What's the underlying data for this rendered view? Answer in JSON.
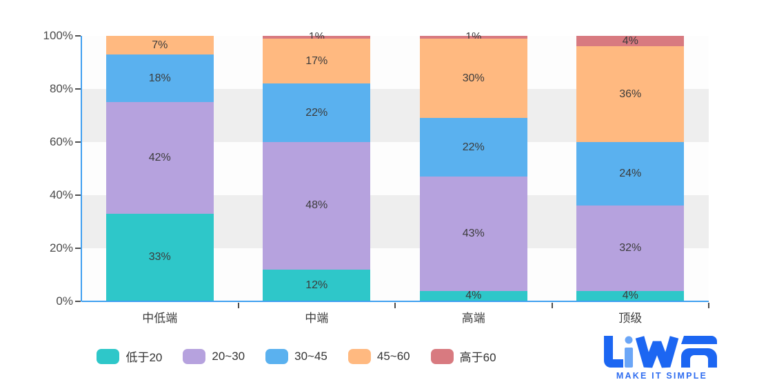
{
  "page": {
    "background": "#ffffff"
  },
  "chart_data": {
    "type": "bar",
    "stacked": true,
    "percent_stack": true,
    "categories": [
      "中低端",
      "中端",
      "高端",
      "顶级"
    ],
    "series": [
      {
        "name": "低于20",
        "color": "#2ec7c9",
        "values": [
          33,
          12,
          4,
          4
        ]
      },
      {
        "name": "20~30",
        "color": "#b6a2de",
        "values": [
          42,
          48,
          43,
          32
        ]
      },
      {
        "name": "30~45",
        "color": "#5ab1ef",
        "values": [
          18,
          22,
          22,
          24
        ]
      },
      {
        "name": "45~60",
        "color": "#ffb980",
        "values": [
          7,
          17,
          30,
          36
        ]
      },
      {
        "name": "高于60",
        "color": "#d87a80",
        "values": [
          0,
          1,
          1,
          4
        ]
      }
    ],
    "data_label_format": "{value}%",
    "y_axis": {
      "tick_labels": [
        "100%",
        "80%",
        "60%",
        "40%",
        "20%",
        "0%"
      ],
      "min": 0,
      "max": 100
    },
    "legend_position": "bottom",
    "grid": {
      "split_area": true,
      "split_area_colors": [
        "rgba(250,250,250,0.45)",
        "rgba(200,200,200,0.3)"
      ]
    },
    "style": {
      "axis_line_color": "#3f9ff0",
      "tick_mark_color": "#4d4d4d",
      "y_label_color": "#4a4a4a",
      "x_label_color": "#3d3d3d",
      "bar_label_color": "#3b3b3b",
      "legend_text_color": "#333333"
    }
  },
  "logo": {
    "text": "LiWA",
    "tagline": "MAKE IT SIMPLE",
    "primary_color": "#1c66f2",
    "accent_color": "#6ba6f7",
    "tagline_color": "#2e6cf0"
  }
}
